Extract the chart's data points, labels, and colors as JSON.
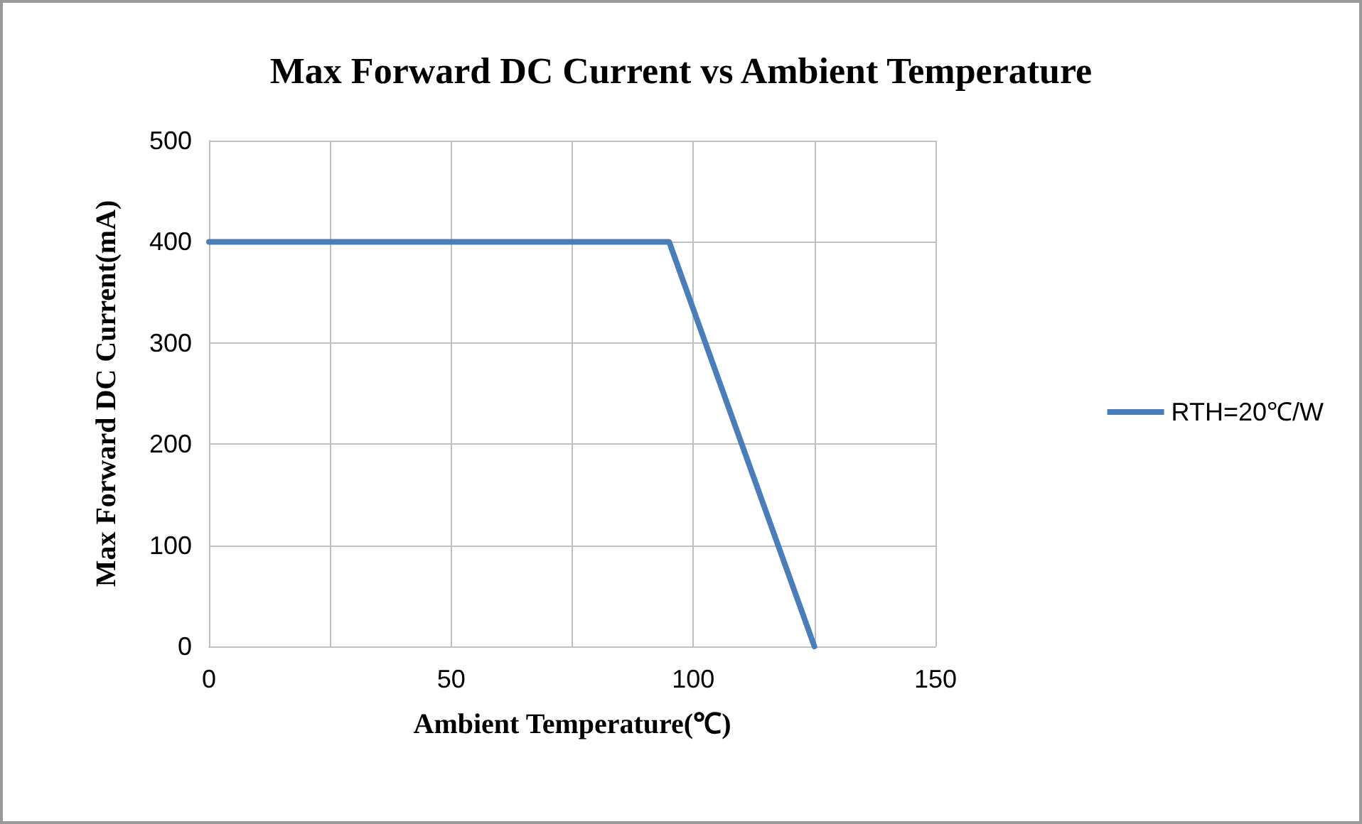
{
  "chart_data": {
    "type": "line",
    "title": "Max Forward DC Current vs Ambient Temperature",
    "xlabel": "Ambient Temperature(℃)",
    "ylabel": "Max Forward DC Current(mA)",
    "x": [
      0,
      95,
      125
    ],
    "series": [
      {
        "name": "RTH=20℃/W",
        "color": "#4a7ebb",
        "values": [
          400,
          400,
          0
        ]
      }
    ],
    "xlim": [
      0,
      150
    ],
    "xticks": [
      0,
      {
        "value": 25,
        "label": null
      },
      50,
      {
        "value": 75,
        "label": null
      },
      100,
      {
        "value": 125,
        "label": null
      },
      150
    ],
    "ylim": [
      0,
      500
    ],
    "yticks": [
      0,
      100,
      200,
      300,
      400,
      500
    ],
    "grid": true,
    "legend": "right",
    "marker": "none",
    "line_style": "solid"
  }
}
